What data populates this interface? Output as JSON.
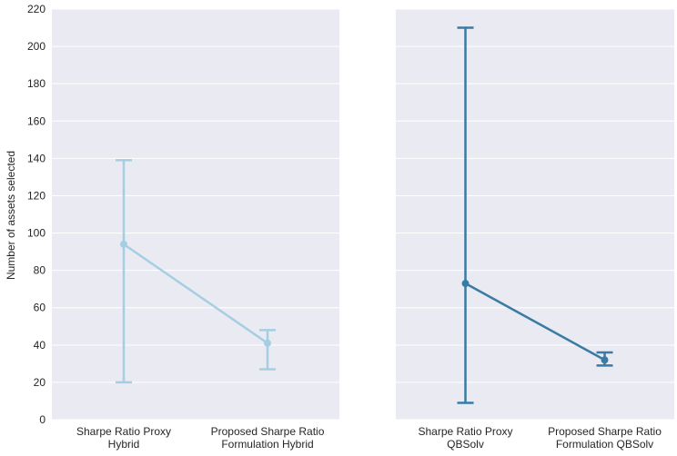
{
  "chart_data": {
    "type": "pointplot",
    "ylabel": "Number of assets selected",
    "ylim": [
      0,
      220
    ],
    "yticks": [
      0,
      20,
      40,
      60,
      80,
      100,
      120,
      140,
      160,
      180,
      200,
      220
    ],
    "shared_y": true,
    "grid": true,
    "background_color": "#eaeaf2",
    "panels": [
      {
        "color": "#a6cee3",
        "categories": [
          [
            "Sharpe Ratio Proxy",
            "Hybrid"
          ],
          [
            "Proposed Sharpe Ratio",
            "Formulation Hybrid"
          ]
        ],
        "values": [
          94,
          41
        ],
        "error_low": [
          20,
          27
        ],
        "error_high": [
          139,
          48
        ]
      },
      {
        "color": "#3a7ba3",
        "categories": [
          [
            "Sharpe Ratio Proxy",
            "QBSolv"
          ],
          [
            "Proposed Sharpe Ratio",
            "Formulation QBSolv"
          ]
        ],
        "values": [
          73,
          32
        ],
        "error_low": [
          9,
          29
        ],
        "error_high": [
          210,
          36
        ]
      }
    ]
  }
}
